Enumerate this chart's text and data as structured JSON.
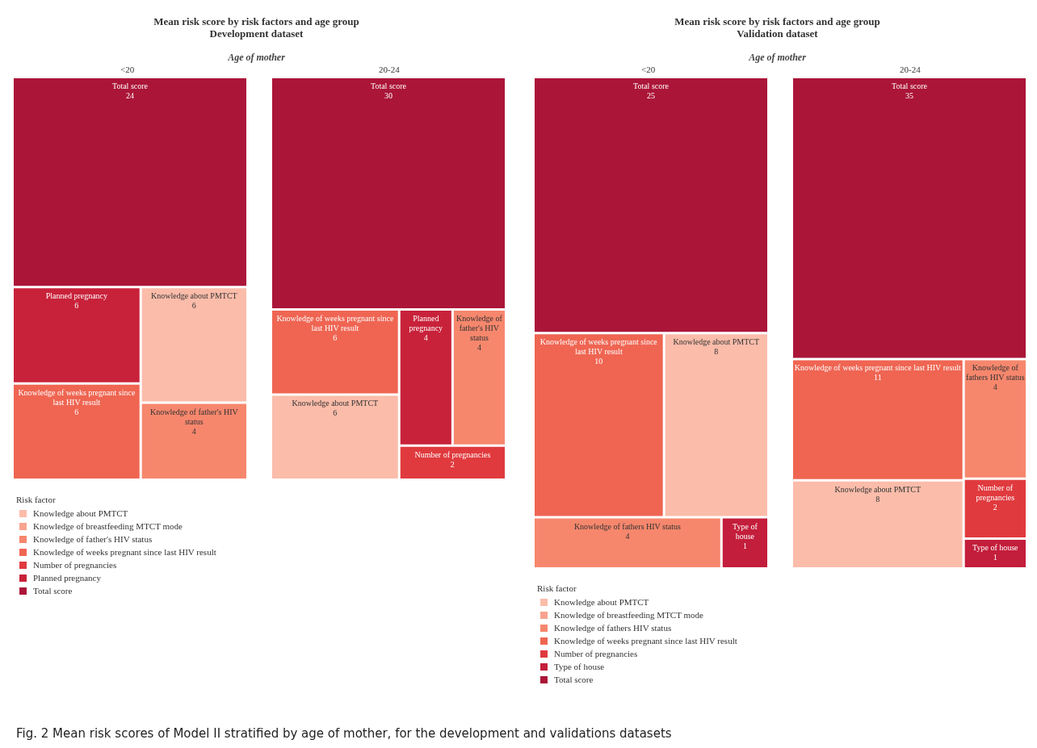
{
  "chart_data": [
    {
      "type": "other",
      "title": "Mean risk score by risk factors and age group",
      "subtitle": "Development dataset",
      "xlabel": "Age of mother",
      "categories": [
        "<20",
        "20-24"
      ],
      "legend_title": "Risk factor",
      "legend": "bottom left",
      "series": [
        {
          "name": "Knowledge about PMTCT",
          "color": "#fbbcaa",
          "values": [
            6,
            6
          ],
          "value_labels": [
            "6",
            "6"
          ]
        },
        {
          "name": "Knowledge of breastfeeding MTCT mode",
          "color": "#f9a38e",
          "values": [
            null,
            null
          ],
          "value_labels": [
            null,
            null
          ]
        },
        {
          "name": "Knowledge of father's HIV status",
          "color": "#f6876d",
          "values": [
            4,
            4
          ],
          "value_labels": [
            "4",
            "4"
          ]
        },
        {
          "name": "Knowledge of weeks pregnant since last HIV result",
          "color": "#ef6552",
          "values": [
            6,
            6
          ],
          "value_labels": [
            "6",
            "6"
          ]
        },
        {
          "name": "Number of pregnancies",
          "color": "#e03a3e",
          "values": [
            null,
            2
          ],
          "value_labels": [
            null,
            "2"
          ]
        },
        {
          "name": "Planned pregnancy",
          "color": "#c8223a",
          "values": [
            6,
            4
          ],
          "value_labels": [
            "6",
            "4"
          ]
        },
        {
          "name": "Total score",
          "color": "#ab1538",
          "values": [
            24,
            30
          ],
          "value_labels": [
            "24",
            "30"
          ]
        }
      ],
      "annotations": [
        "Fig. 2  Mean risk scores of Model II stratified by age of mother, for the development and validations datasets"
      ]
    },
    {
      "type": "other",
      "title": "Mean risk score by risk factors and age group",
      "subtitle": "Validation dataset",
      "xlabel": "Age of mother",
      "categories": [
        "<20",
        "20-24"
      ],
      "legend_title": "Risk factor",
      "legend": "bottom left",
      "series": [
        {
          "name": "Knowledge about PMTCT",
          "color": "#fbbcaa",
          "values": [
            8,
            8
          ],
          "value_labels": [
            "8",
            "8"
          ]
        },
        {
          "name": "Knowledge of breastfeeding MTCT mode",
          "color": "#f9a38e",
          "values": [
            null,
            null
          ],
          "value_labels": [
            null,
            null
          ]
        },
        {
          "name": "Knowledge of fathers HIV status",
          "color": "#f6876d",
          "values": [
            4,
            4
          ],
          "value_labels": [
            "4",
            "4"
          ]
        },
        {
          "name": "Knowledge of weeks pregnant since last HIV result",
          "color": "#ef6552",
          "values": [
            10,
            11
          ],
          "value_labels": [
            "10",
            "11"
          ]
        },
        {
          "name": "Number of pregnancies",
          "color": "#e03a3e",
          "values": [
            null,
            2
          ],
          "value_labels": [
            null,
            "2"
          ]
        },
        {
          "name": "Type of house",
          "color": "#c31e3b",
          "values": [
            1,
            1
          ],
          "value_labels": [
            "1",
            "1"
          ]
        },
        {
          "name": "Total score",
          "color": "#ab1538",
          "values": [
            25,
            35
          ],
          "value_labels": [
            "25",
            "35"
          ]
        }
      ]
    }
  ]
}
